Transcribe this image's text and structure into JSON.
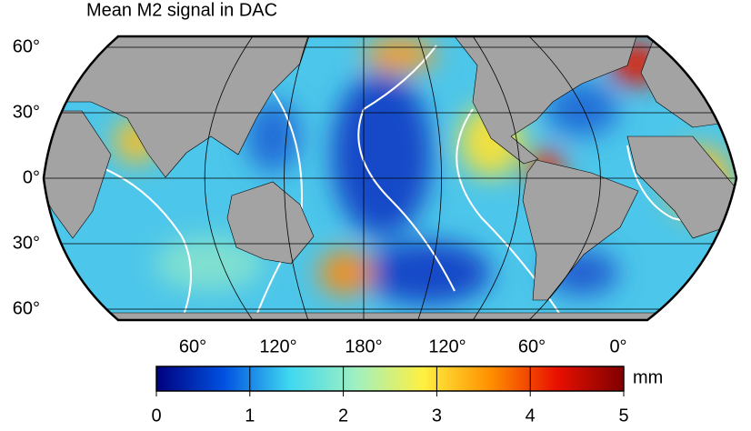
{
  "title": "Mean M2 signal in DAC",
  "map": {
    "lat_labels": [
      "60°",
      "30°",
      "0°",
      "30°",
      "60°"
    ],
    "lon_labels": [
      "60°",
      "120°",
      "180°",
      "120°",
      "60°",
      "0°"
    ]
  },
  "colorbar": {
    "unit": "mm",
    "range": [
      0,
      5
    ],
    "ticks": [
      0,
      1,
      2,
      3,
      4,
      5
    ],
    "colors": [
      "#00007f",
      "#0050e0",
      "#40d8f0",
      "#a0f0c0",
      "#fff040",
      "#ff9000",
      "#e81000",
      "#7f0000"
    ]
  }
}
